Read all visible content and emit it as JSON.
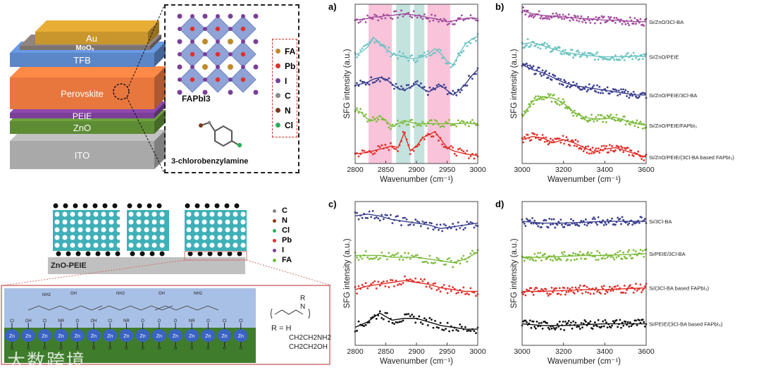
{
  "device_stack": {
    "layers": [
      {
        "name": "Au",
        "color": "#c9962e"
      },
      {
        "name": "MoOx",
        "color": "#7d7370"
      },
      {
        "name": "TFB",
        "color": "#5b86c7"
      },
      {
        "name": "Perovskite",
        "color": "#e8773e"
      },
      {
        "name": "PEIE",
        "color": "#7b3f98"
      },
      {
        "name": "ZnO",
        "color": "#5e8c35"
      },
      {
        "name": "ITO",
        "color": "#a9a9a9"
      }
    ]
  },
  "crystal_inset": {
    "formula": "FAPbI3",
    "molecule": "3-chlorobenzylamine",
    "legend": [
      {
        "label": "FA",
        "color": "#c08a2a"
      },
      {
        "label": "Pb",
        "color": "#e0302a"
      },
      {
        "label": "I",
        "color": "#7b3f98"
      },
      {
        "label": "C",
        "color": "#888888"
      },
      {
        "label": "N",
        "color": "#7a3a1e"
      },
      {
        "label": "Cl",
        "color": "#2bb05a"
      }
    ]
  },
  "interface_schematic": {
    "substrate_label": "ZnO-PEIE",
    "legend": [
      {
        "label": "C",
        "color": "#888888"
      },
      {
        "label": "N",
        "color": "#8b3a1a"
      },
      {
        "label": "Cl",
        "color": "#2bb05a"
      },
      {
        "label": "Pb",
        "color": "#e0302a"
      },
      {
        "label": "I",
        "color": "#7b3f98"
      },
      {
        "label": "FA",
        "color": "#6fbf3f"
      }
    ],
    "zn_label": "Zn",
    "surface_groups": [
      "Cl",
      "OH",
      "Cl",
      "NR",
      "O",
      "OH",
      "Cl",
      "NR",
      "O",
      "O",
      "O",
      "NR",
      "O",
      "Cl",
      "Cl"
    ],
    "top_groups": [
      "NH2",
      "OH",
      "NH2",
      "OH",
      "NH2"
    ],
    "polymer_formula": {
      "substituent": "R",
      "atom": "N",
      "r_def": "R = H",
      "options": [
        "CH2CH2NH2",
        "CH2CH2OH"
      ]
    },
    "watermark": "大数跨境"
  },
  "chart_data": [
    {
      "panel": "a)",
      "type": "scatter",
      "xlabel": "Wavenumber (cm⁻¹)",
      "ylabel": "SFG intensity (a.u.)",
      "xlim": [
        2800,
        3000
      ],
      "ylim": [
        0,
        10
      ],
      "xticks": [
        2800,
        2850,
        2900,
        2950,
        3000
      ],
      "bands": [
        {
          "from": 2822,
          "to": 2860,
          "color": "#f9c3d9"
        },
        {
          "from": 2867,
          "to": 2890,
          "color": "#c4e3de"
        },
        {
          "from": 2896,
          "to": 2913,
          "color": "#c4e3de"
        },
        {
          "from": 2918,
          "to": 2955,
          "color": "#f9c3d9"
        }
      ],
      "x": [
        2800,
        2810,
        2820,
        2830,
        2840,
        2850,
        2860,
        2870,
        2880,
        2890,
        2900,
        2910,
        2920,
        2930,
        2940,
        2950,
        2960,
        2970,
        2980,
        2990,
        3000
      ],
      "series": [
        {
          "name": "Si/ZnO/3Cl-BA",
          "color": "#a24a9e",
          "values": [
            9.0,
            9.05,
            9.1,
            9.2,
            9.2,
            9.3,
            9.3,
            9.35,
            9.4,
            9.35,
            9.3,
            9.25,
            9.15,
            9.1,
            9.0,
            8.9,
            8.95,
            9.05,
            9.1,
            9.15,
            9.1
          ]
        },
        {
          "name": "Si/ZnO/PEIE",
          "color": "#6cc3c3",
          "values": [
            6.8,
            7.0,
            7.3,
            7.9,
            7.6,
            7.2,
            6.9,
            6.8,
            6.7,
            6.6,
            6.6,
            6.7,
            6.9,
            7.2,
            6.9,
            6.4,
            6.2,
            6.9,
            7.5,
            7.8,
            8.0
          ]
        },
        {
          "name": "Si/ZnO/PEIE/3Cl-BA",
          "color": "#3b3f8f",
          "values": [
            4.9,
            5.0,
            5.1,
            5.3,
            5.4,
            5.3,
            5.0,
            4.7,
            4.6,
            4.8,
            5.0,
            4.7,
            4.5,
            4.7,
            4.9,
            4.6,
            4.3,
            4.6,
            5.0,
            5.5,
            5.9
          ]
        },
        {
          "name": "Si/ZnO/PEIE/FAPbI3",
          "color": "#7dbb3b",
          "values": [
            3.4,
            3.2,
            2.8,
            2.7,
            3.0,
            2.7,
            2.3,
            2.5,
            2.7,
            2.6,
            2.5,
            2.5,
            2.5,
            2.5,
            2.5,
            2.5,
            2.5,
            2.5,
            2.55,
            2.5,
            2.5
          ]
        },
        {
          "name": "Si/ZnO/PEIE/(3Cl-BA based FAPbI3)",
          "color": "#e0302a",
          "values": [
            0.6,
            0.65,
            0.7,
            0.8,
            0.9,
            1.0,
            1.1,
            1.0,
            1.9,
            0.8,
            1.1,
            1.6,
            1.8,
            2.0,
            1.5,
            1.0,
            0.8,
            0.7,
            0.6,
            0.55,
            0.5
          ]
        }
      ]
    },
    {
      "panel": "b)",
      "type": "scatter",
      "xlabel": "Wavenumber (cm⁻¹)",
      "ylabel": "SFG intensity (a.u.)",
      "xlim": [
        3000,
        3600
      ],
      "ylim": [
        0,
        10
      ],
      "xticks": [
        3000,
        3200,
        3400,
        3600
      ],
      "x": [
        3000,
        3050,
        3100,
        3150,
        3200,
        3250,
        3300,
        3350,
        3400,
        3450,
        3500,
        3550,
        3600
      ],
      "series": [
        {
          "name": "Si/ZnO/3Cl-BA",
          "color": "#a24a9e",
          "values": [
            9.6,
            9.4,
            9.3,
            9.25,
            9.2,
            9.15,
            9.1,
            9.05,
            9.0,
            9.0,
            8.95,
            8.9,
            8.9
          ]
        },
        {
          "name": "Si/ZnO/PEIE",
          "color": "#6cc3c3",
          "values": [
            7.5,
            7.6,
            7.4,
            7.2,
            7.0,
            6.9,
            6.8,
            6.75,
            6.7,
            6.7,
            6.7,
            6.75,
            6.7
          ]
        },
        {
          "name": "Si/ZnO/PEIE/3Cl-BA",
          "color": "#3b3f8f",
          "values": [
            6.2,
            5.9,
            5.7,
            5.4,
            5.1,
            4.9,
            4.8,
            4.7,
            4.6,
            4.5,
            4.4,
            4.3,
            4.3
          ]
        },
        {
          "name": "Si/ZnO/PEIE/FAPbI3",
          "color": "#7dbb3b",
          "values": [
            2.9,
            3.9,
            4.2,
            4.1,
            3.8,
            3.2,
            2.9,
            2.8,
            2.8,
            2.9,
            2.7,
            2.5,
            2.4
          ]
        },
        {
          "name": "Si/ZnO/PEIE/(3Cl-BA based FAPbI3)",
          "color": "#e0302a",
          "values": [
            1.5,
            1.7,
            1.6,
            1.3,
            1.5,
            1.3,
            1.0,
            0.7,
            0.9,
            1.0,
            0.8,
            0.6,
            0.4
          ]
        }
      ]
    },
    {
      "panel": "c)",
      "type": "scatter",
      "xlabel": "Wavenumber (cm⁻¹)",
      "ylabel": "SFG intensity (a.u.)",
      "xlim": [
        2800,
        3000
      ],
      "ylim": [
        0,
        8
      ],
      "xticks": [
        2800,
        2850,
        2900,
        2950,
        3000
      ],
      "x": [
        2800,
        2820,
        2840,
        2860,
        2880,
        2900,
        2920,
        2940,
        2960,
        2980,
        3000
      ],
      "series": [
        {
          "name": "Si/3Cl-BA",
          "color": "#3b3f8f",
          "values": [
            7.2,
            7.3,
            7.2,
            7.0,
            6.9,
            6.8,
            6.7,
            6.5,
            6.6,
            6.7,
            6.8
          ]
        },
        {
          "name": "Si/PEIE/3Cl-BA",
          "color": "#7dbb3b",
          "values": [
            5.0,
            5.0,
            5.0,
            4.9,
            4.9,
            4.9,
            4.8,
            4.7,
            4.6,
            4.8,
            5.2
          ]
        },
        {
          "name": "Si/(3Cl-BA based FAPbI3)",
          "color": "#e0302a",
          "values": [
            3.1,
            3.3,
            3.4,
            3.5,
            3.6,
            3.5,
            3.4,
            3.2,
            3.1,
            3.0,
            3.0
          ]
        },
        {
          "name": "Si/PEIE/(3Cl-BA based FAPbI3)",
          "color": "#111111",
          "values": [
            1.0,
            1.3,
            1.8,
            1.4,
            1.5,
            1.5,
            1.3,
            1.1,
            1.0,
            0.9,
            0.9
          ]
        }
      ]
    },
    {
      "panel": "d)",
      "type": "scatter",
      "xlabel": "Wavenumber (cm⁻¹)",
      "ylabel": "SFG intensity (a.u.)",
      "xlim": [
        3000,
        3600
      ],
      "ylim": [
        0,
        8
      ],
      "xticks": [
        3000,
        3200,
        3400,
        3600
      ],
      "x": [
        3000,
        3100,
        3200,
        3300,
        3400,
        3500,
        3600
      ],
      "series": [
        {
          "name": "Si/3Cl-BA",
          "color": "#3b3f8f",
          "values": [
            6.9,
            6.8,
            6.8,
            6.85,
            6.9,
            6.9,
            6.9
          ]
        },
        {
          "name": "Si/PEIE/3Cl-BA",
          "color": "#7dbb3b",
          "values": [
            4.9,
            4.9,
            4.95,
            5.0,
            5.0,
            5.05,
            5.1
          ]
        },
        {
          "name": "Si/(3Cl-BA based FAPbI3)",
          "color": "#e0302a",
          "values": [
            3.0,
            3.0,
            3.05,
            3.1,
            3.1,
            3.15,
            3.2
          ]
        },
        {
          "name": "Si/PEIE/(3Cl-BA based FAPbI3)",
          "color": "#111111",
          "values": [
            1.2,
            1.1,
            1.1,
            1.15,
            1.2,
            1.2,
            1.2
          ]
        }
      ]
    }
  ]
}
